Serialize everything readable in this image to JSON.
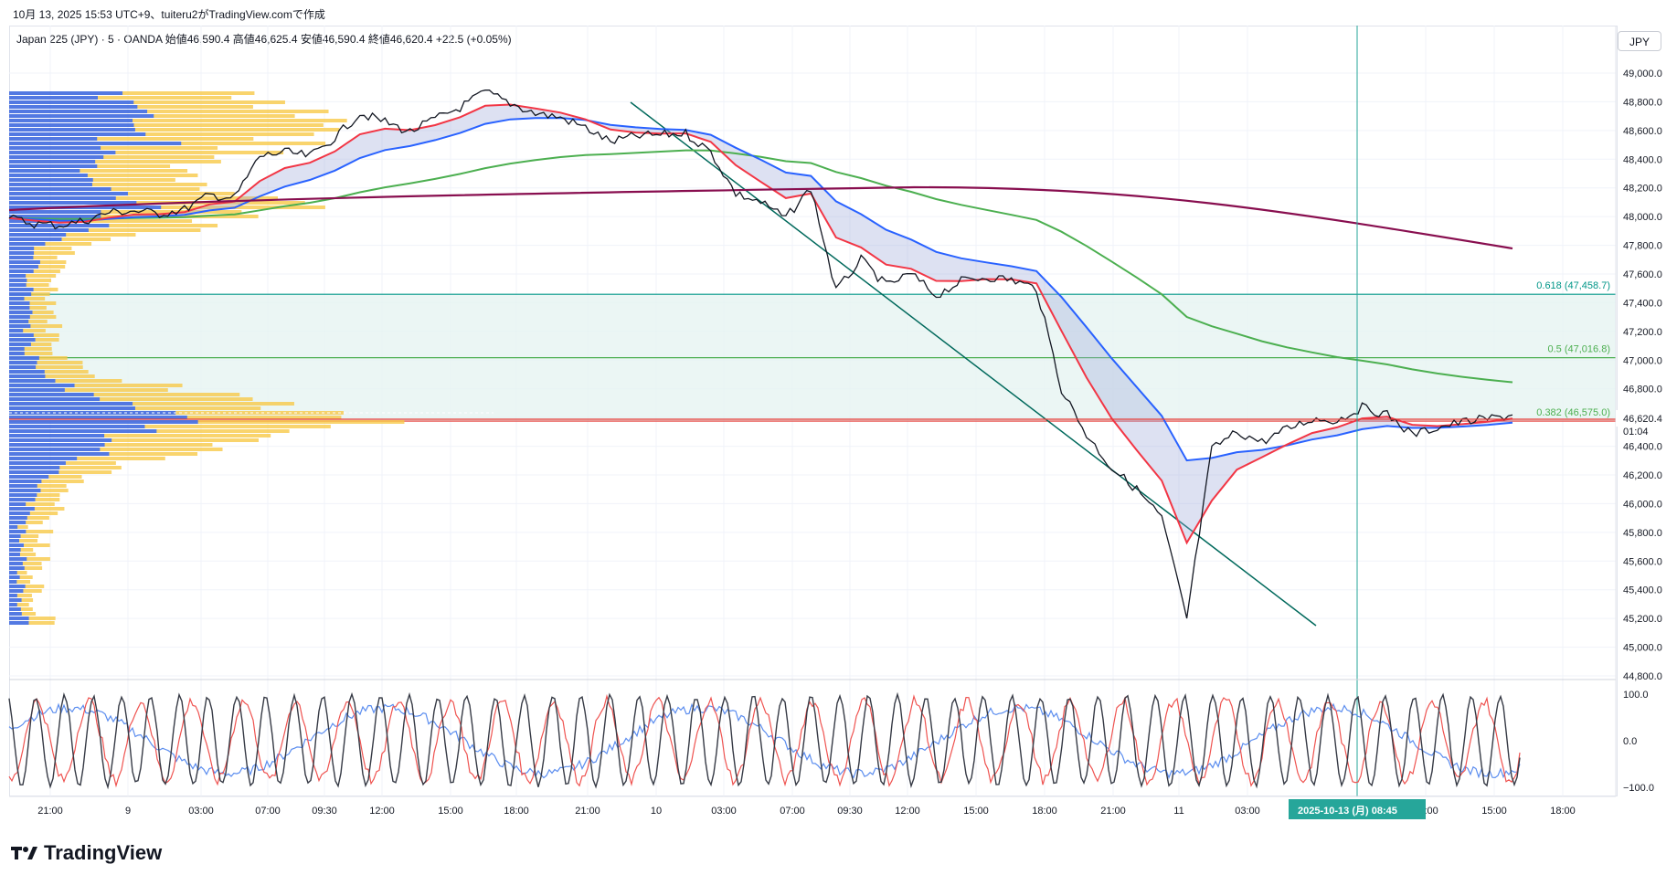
{
  "header": {
    "caption": "10月 13, 2025 15:53 UTC+9、tuiteru2がTradingView.comで作成"
  },
  "symbol_line": "Japan 225 (JPY) · 5 · OANDA  始値46,590.4  高値46,625.4  安値46,590.4  終値46,620.4  +22.5 (+0.05%)",
  "currency": "JPY",
  "brand": "TradingView",
  "colors": {
    "price": "#131722",
    "ema_fast": "#f23645",
    "ema_slow": "#2962ff",
    "ma_green": "#4caf50",
    "ma_purple": "#880e4f",
    "fib_line": "#009688",
    "fib_fill": "#e6f4f1",
    "vp_up": "#f7c948",
    "vp_down": "#2962ff",
    "current_price": "#e53935",
    "crosshair": "#26a69a",
    "trend": "#00695c"
  },
  "price_axis": {
    "labels": [
      "49,000.0",
      "48,800.0",
      "48,600.0",
      "48,400.0",
      "48,200.0",
      "48,000.0",
      "47,800.0",
      "47,600.0",
      "47,400.0",
      "47,200.0",
      "47,000.0",
      "46,800.0",
      "46,400.0",
      "46,200.0",
      "46,000.0",
      "45,800.0",
      "45,600.0",
      "45,400.0",
      "45,200.0",
      "45,000.0",
      "44,800.0"
    ],
    "current_price": "46,620.4",
    "countdown": "01:04"
  },
  "fib_levels": [
    {
      "label": "0.618 (47,458.7)"
    },
    {
      "label": "0.5 (47,016.8)"
    },
    {
      "label": "0.382 (46,575.0)"
    }
  ],
  "oscillator_axis": [
    "100.0",
    "0.0",
    "−100.0"
  ],
  "time_axis": {
    "labels": [
      "21:00",
      "9",
      "03:00",
      "07:00",
      "09:30",
      "12:00",
      "15:00",
      "18:00",
      "21:00",
      "10",
      "03:00",
      "07:00",
      "09:30",
      "12:00",
      "15:00",
      "18:00",
      "21:00",
      "11",
      "03:00",
      "12:00",
      "15:00",
      "18:00"
    ],
    "crosshair_label": "2025-10-13 (月)   08:45"
  },
  "chart_data": {
    "type": "line",
    "ylim": [
      44780,
      49100
    ],
    "price_series": {
      "x": [
        0,
        1,
        2,
        3,
        4,
        5,
        6,
        7,
        8,
        9,
        10,
        11,
        12,
        13,
        14,
        15,
        16,
        17,
        18,
        19,
        20,
        21,
        22,
        23,
        24,
        25,
        26,
        27,
        28,
        29,
        30,
        31,
        32,
        33,
        34,
        35,
        36,
        37,
        38,
        39,
        40,
        41,
        42,
        43,
        44,
        45,
        46,
        47,
        48,
        49,
        50,
        51,
        52,
        53,
        54,
        55,
        56,
        57,
        58,
        59,
        60
      ],
      "close": [
        47990,
        47950,
        47940,
        47970,
        48030,
        48040,
        48020,
        48050,
        48150,
        48130,
        48420,
        48450,
        48420,
        48550,
        48720,
        48660,
        48590,
        48680,
        48760,
        48870,
        48790,
        48720,
        48690,
        48620,
        48520,
        48560,
        48570,
        48580,
        48450,
        48160,
        48100,
        47990,
        48200,
        47480,
        47700,
        47520,
        47600,
        47450,
        47550,
        47580,
        47560,
        47500,
        46800,
        46480,
        46250,
        46100,
        45900,
        45200,
        46380,
        46500,
        46430,
        46520,
        46590,
        46580,
        46670,
        46620,
        46480,
        46530,
        46570,
        46590,
        46620
      ]
    }
  }
}
